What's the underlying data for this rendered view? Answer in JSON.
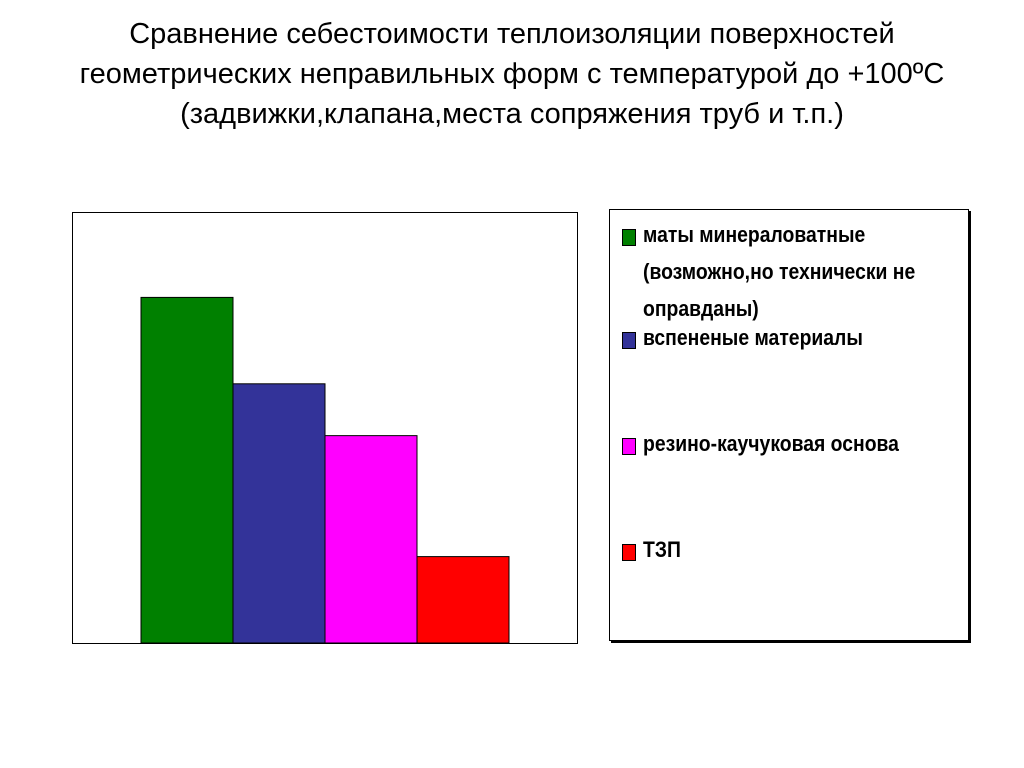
{
  "title": "Сравнение себестоимости теплоизоляции поверхностей геометрических неправильных форм с температурой до +100ºС (задвижки,клапана,места сопряжения труб и т.п.)",
  "chart_data": {
    "type": "bar",
    "title": "Сравнение себестоимости теплоизоляции поверхностей геометрических неправильных форм с температурой до +100ºС (задвижки,клапана,места сопряжения труб и т.п.)",
    "categories": [
      ""
    ],
    "ylim": [
      0,
      100
    ],
    "grid": false,
    "legend_position": "right",
    "series": [
      {
        "name": "маты минераловатные (возможно,но технически не оправданы)",
        "values": [
          80
        ],
        "color": "#008000"
      },
      {
        "name": "вспененые материалы",
        "values": [
          60
        ],
        "color": "#333399"
      },
      {
        "name": "резино-каучуковая основа",
        "values": [
          48
        ],
        "color": "#ff00ff"
      },
      {
        "name": "ТЗП",
        "values": [
          20
        ],
        "color": "#ff0000"
      }
    ]
  }
}
